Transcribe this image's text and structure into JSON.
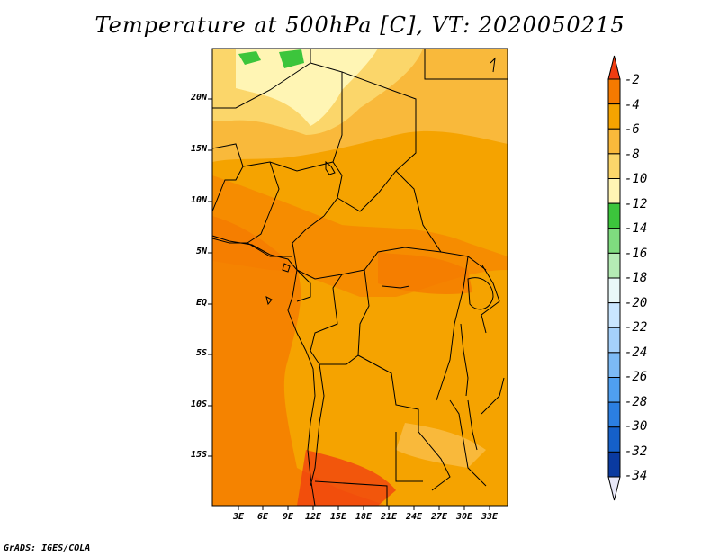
{
  "title": "Temperature at 500hPa [C], VT: 2020050215",
  "lat_labels": [
    "20N",
    "15N",
    "10N",
    "5N",
    "EQ",
    "5S",
    "10S",
    "15S"
  ],
  "lon_labels": [
    "3E",
    "6E",
    "9E",
    "12E",
    "15E",
    "18E",
    "21E",
    "24E",
    "27E",
    "30E",
    "33E"
  ],
  "colorbar": {
    "labels": [
      "-2",
      "-4",
      "-6",
      "-8",
      "-10",
      "-12",
      "-14",
      "-16",
      "-18",
      "-20",
      "-22",
      "-24",
      "-26",
      "-28",
      "-30",
      "-32",
      "-34"
    ],
    "colors": [
      "#f03c10",
      "#f57a00",
      "#f5a300",
      "#f9b93b",
      "#fbd66a",
      "#fff5b4",
      "#3cc53c",
      "#7fdc7f",
      "#b5ecb5",
      "#e9f8f8",
      "#c9e6ff",
      "#a5d1fb",
      "#7cbaf5",
      "#4f9ff0",
      "#2b7fe2",
      "#1560c9",
      "#0a3aa0",
      "#14166e"
    ]
  },
  "credit": "GrADS: IGES/COLA"
}
